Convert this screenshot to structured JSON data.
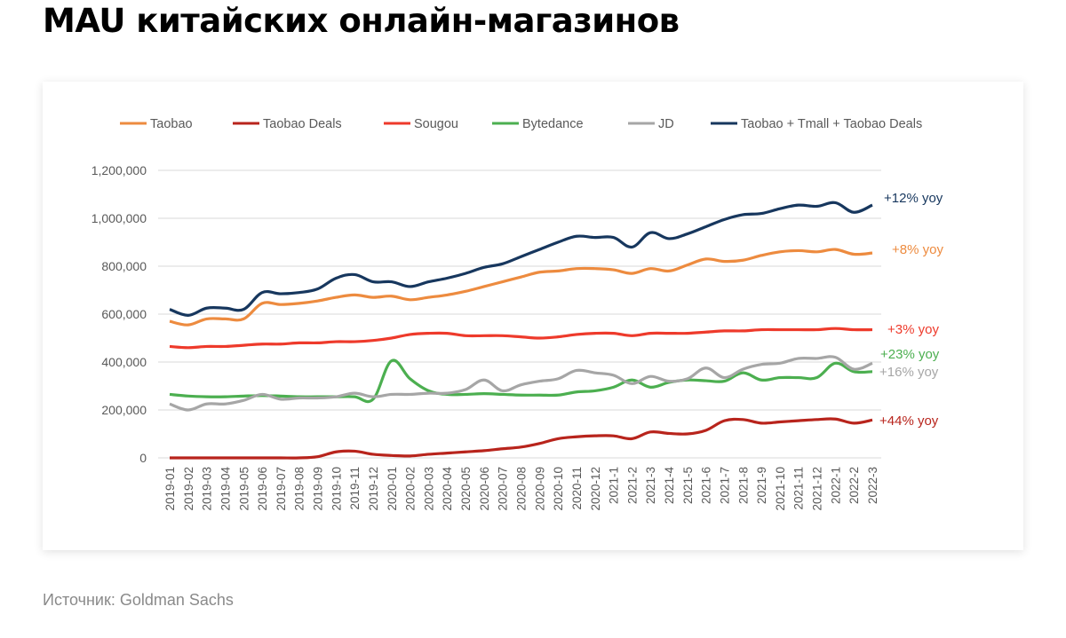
{
  "title": "MAU китайских онлайн-магазинов",
  "source": "Источник: Goldman Sachs",
  "chart_data": {
    "type": "line",
    "title": "",
    "xlabel": "",
    "ylabel": "",
    "ylim": [
      0,
      1200000
    ],
    "yticks": [
      "0",
      "200,000",
      "400,000",
      "600,000",
      "800,000",
      "1,000,000",
      "1,200,000"
    ],
    "ytick_values": [
      0,
      200000,
      400000,
      600000,
      800000,
      1000000,
      1200000
    ],
    "grid": true,
    "legend_position": "top",
    "x": [
      "2019-01",
      "2019-02",
      "2019-03",
      "2019-04",
      "2019-05",
      "2019-06",
      "2019-07",
      "2019-08",
      "2019-09",
      "2019-10",
      "2019-11",
      "2019-12",
      "2020-01",
      "2020-02",
      "2020-03",
      "2020-04",
      "2020-05",
      "2020-06",
      "2020-07",
      "2020-08",
      "2020-09",
      "2020-10",
      "2020-11",
      "2020-12",
      "2021-1",
      "2021-2",
      "2021-3",
      "2021-4",
      "2021-5",
      "2021-6",
      "2021-7",
      "2021-8",
      "2021-9",
      "2021-10",
      "2021-11",
      "2021-12",
      "2022-1",
      "2022-2",
      "2022-3"
    ],
    "series": [
      {
        "name": "Taobao",
        "color": "#ED8B3F",
        "annotation": "+8% yoy",
        "values": [
          570000,
          555000,
          580000,
          580000,
          580000,
          645000,
          640000,
          645000,
          655000,
          670000,
          680000,
          670000,
          675000,
          660000,
          670000,
          680000,
          695000,
          715000,
          735000,
          755000,
          775000,
          780000,
          790000,
          790000,
          785000,
          770000,
          790000,
          780000,
          805000,
          830000,
          820000,
          825000,
          845000,
          860000,
          865000,
          860000,
          870000,
          850000,
          855000
        ]
      },
      {
        "name": "Taobao Deals",
        "color": "#B8241C",
        "annotation": "+44% yoy",
        "values": [
          0,
          0,
          0,
          0,
          0,
          0,
          0,
          0,
          5000,
          25000,
          28000,
          15000,
          10000,
          8000,
          15000,
          20000,
          25000,
          30000,
          38000,
          45000,
          60000,
          80000,
          88000,
          92000,
          92000,
          80000,
          108000,
          102000,
          100000,
          115000,
          155000,
          160000,
          145000,
          150000,
          155000,
          160000,
          162000,
          145000,
          158000
        ]
      },
      {
        "name": "Sougou",
        "color": "#EE3A2B",
        "annotation": "+3% yoy",
        "values": [
          465000,
          460000,
          465000,
          465000,
          470000,
          475000,
          475000,
          480000,
          480000,
          485000,
          485000,
          490000,
          500000,
          515000,
          520000,
          520000,
          510000,
          510000,
          510000,
          505000,
          500000,
          505000,
          515000,
          520000,
          520000,
          510000,
          520000,
          520000,
          520000,
          525000,
          530000,
          530000,
          535000,
          535000,
          535000,
          535000,
          540000,
          535000,
          535000
        ]
      },
      {
        "name": "Bytedance",
        "color": "#4CAF50",
        "annotation": "+23% yoy",
        "values": [
          265000,
          258000,
          255000,
          255000,
          258000,
          260000,
          258000,
          255000,
          255000,
          255000,
          255000,
          245000,
          405000,
          330000,
          280000,
          265000,
          265000,
          268000,
          265000,
          262000,
          262000,
          262000,
          275000,
          280000,
          295000,
          325000,
          295000,
          315000,
          325000,
          322000,
          320000,
          355000,
          325000,
          335000,
          335000,
          335000,
          395000,
          360000,
          360000
        ]
      },
      {
        "name": "JD",
        "color": "#A6A6A6",
        "annotation": "+16% yoy",
        "values": [
          225000,
          200000,
          225000,
          225000,
          240000,
          265000,
          245000,
          250000,
          250000,
          255000,
          270000,
          255000,
          265000,
          265000,
          270000,
          270000,
          285000,
          325000,
          280000,
          305000,
          320000,
          330000,
          365000,
          355000,
          345000,
          310000,
          340000,
          320000,
          330000,
          375000,
          335000,
          370000,
          390000,
          395000,
          415000,
          415000,
          420000,
          370000,
          395000
        ]
      },
      {
        "name": "Taobao + Tmall + Taobao Deals",
        "color": "#17375E",
        "annotation": "+12% yoy",
        "values": [
          620000,
          595000,
          625000,
          625000,
          620000,
          690000,
          685000,
          690000,
          705000,
          750000,
          765000,
          735000,
          735000,
          715000,
          735000,
          750000,
          770000,
          795000,
          810000,
          840000,
          870000,
          900000,
          925000,
          920000,
          920000,
          880000,
          940000,
          915000,
          935000,
          965000,
          995000,
          1015000,
          1020000,
          1040000,
          1055000,
          1050000,
          1065000,
          1025000,
          1055000
        ]
      }
    ]
  }
}
